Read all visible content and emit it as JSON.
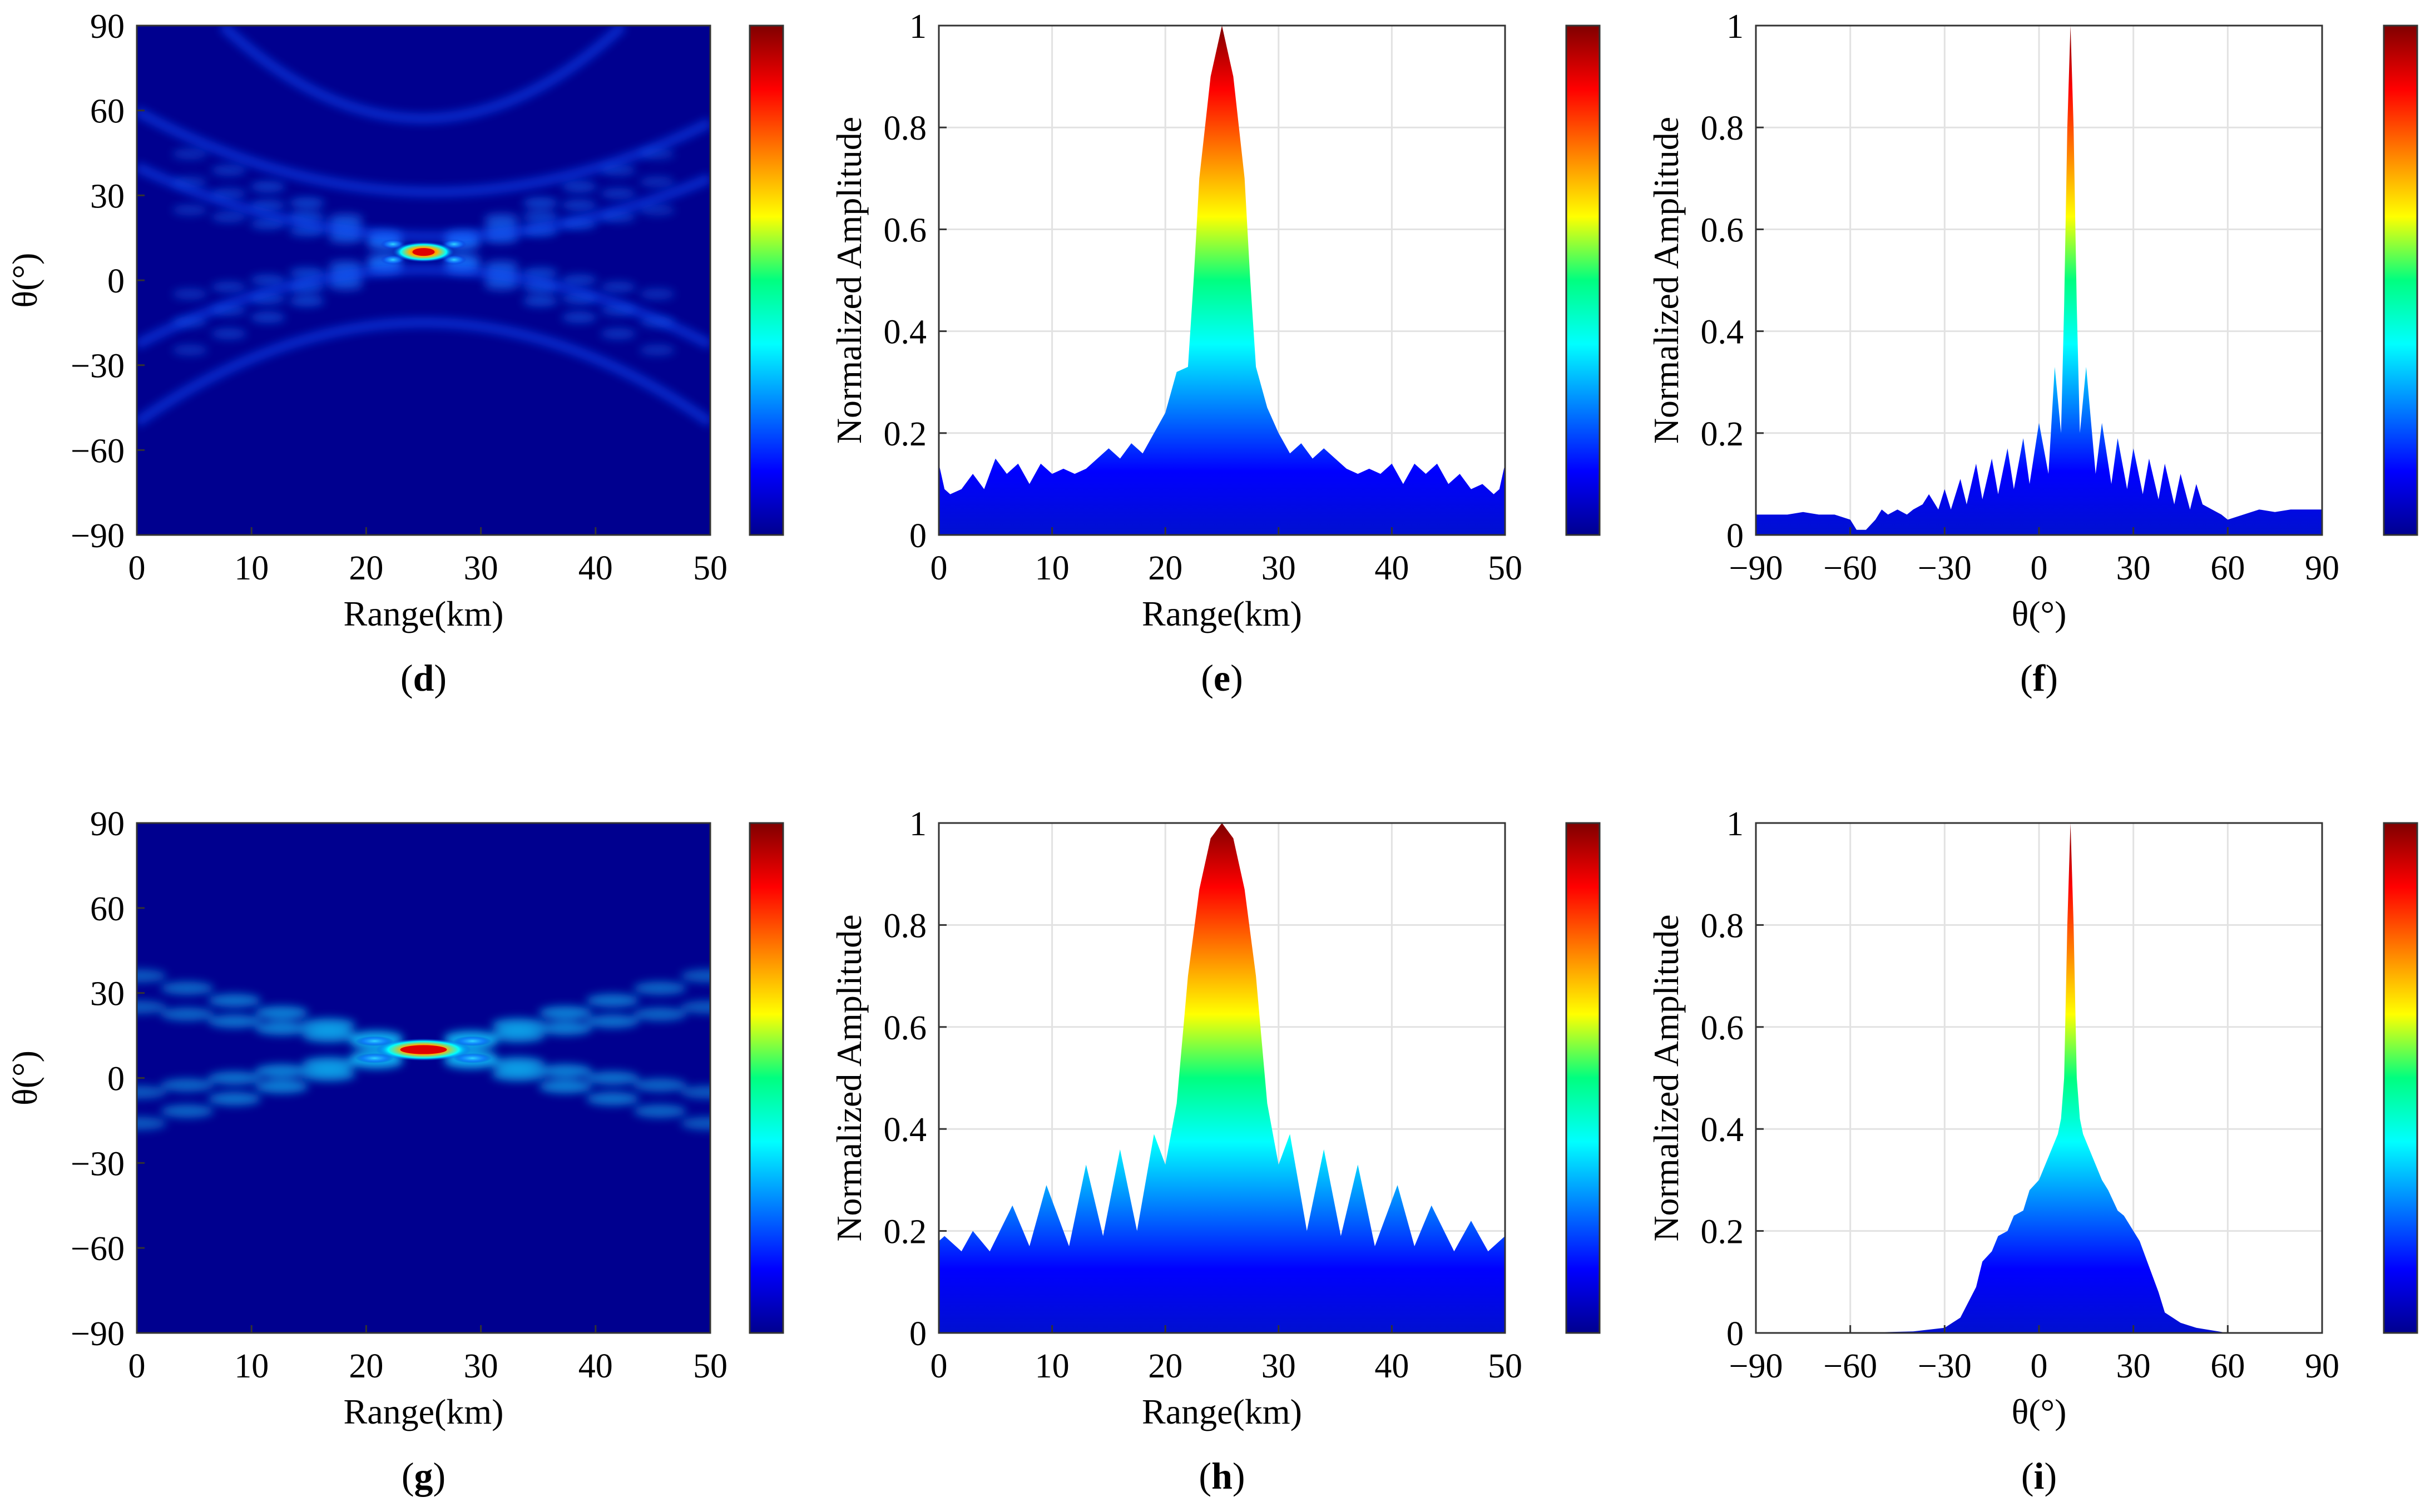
{
  "chart_data": [
    {
      "id": "d",
      "type": "heatmap",
      "label": "d",
      "title": "",
      "xlabel": "Range(km)",
      "ylabel": "θ(°)",
      "xlim": [
        0,
        50
      ],
      "ylim": [
        -90,
        90
      ],
      "xticks": [
        "0",
        "10",
        "20",
        "30",
        "40",
        "50"
      ],
      "yticks": [
        "−90",
        "−60",
        "−30",
        "0",
        "30",
        "60",
        "90"
      ],
      "peak": {
        "range_km": 25,
        "theta_deg": 10,
        "value": 1.0
      },
      "colorbar": true,
      "colormap": "jet"
    },
    {
      "id": "e",
      "type": "area",
      "label": "e",
      "xlabel": "Range(km)",
      "ylabel": "Normalized Amplitude",
      "xlim": [
        0,
        50
      ],
      "ylim": [
        0,
        1
      ],
      "xticks": [
        "0",
        "10",
        "20",
        "30",
        "40",
        "50"
      ],
      "yticks": [
        "0",
        "0.2",
        "0.4",
        "0.6",
        "0.8",
        "1"
      ],
      "x": [
        0,
        0.5,
        1,
        2,
        3,
        4,
        5,
        6,
        7,
        8,
        9,
        10,
        11,
        12,
        13,
        14,
        15,
        16,
        17,
        18,
        19,
        20,
        21,
        22,
        22.5,
        23,
        24,
        25,
        26,
        27,
        27.5,
        28,
        29,
        30,
        31,
        32,
        33,
        34,
        35,
        36,
        37,
        38,
        39,
        40,
        41,
        42,
        43,
        44,
        45,
        46,
        47,
        48,
        49,
        49.5,
        50
      ],
      "values": [
        0.14,
        0.09,
        0.08,
        0.09,
        0.12,
        0.09,
        0.15,
        0.12,
        0.14,
        0.1,
        0.14,
        0.12,
        0.13,
        0.12,
        0.13,
        0.15,
        0.17,
        0.15,
        0.18,
        0.16,
        0.2,
        0.24,
        0.32,
        0.33,
        0.5,
        0.7,
        0.9,
        1.0,
        0.9,
        0.7,
        0.5,
        0.33,
        0.25,
        0.2,
        0.16,
        0.18,
        0.15,
        0.17,
        0.15,
        0.13,
        0.12,
        0.13,
        0.12,
        0.14,
        0.1,
        0.14,
        0.12,
        0.14,
        0.1,
        0.12,
        0.09,
        0.1,
        0.08,
        0.09,
        0.14
      ],
      "colorbar": true,
      "colormap": "jet"
    },
    {
      "id": "f",
      "type": "area",
      "label": "f",
      "xlabel": "θ(°)",
      "ylabel": "Normalized Amplitude",
      "xlim": [
        -90,
        90
      ],
      "ylim": [
        0,
        1
      ],
      "xticks": [
        "−90",
        "−60",
        "−30",
        "0",
        "30",
        "60",
        "90"
      ],
      "yticks": [
        "0",
        "0.2",
        "0.4",
        "0.6",
        "0.8",
        "1"
      ],
      "x": [
        -90,
        -85,
        -80,
        -75,
        -70,
        -65,
        -60,
        -58,
        -55,
        -52,
        -50,
        -48,
        -45,
        -42,
        -40,
        -37,
        -35,
        -32,
        -30,
        -28,
        -25,
        -23,
        -20,
        -18,
        -15,
        -13,
        -10,
        -8,
        -5,
        -3,
        0,
        3,
        5,
        7,
        8,
        9,
        10,
        11,
        12,
        13,
        15,
        18,
        20,
        23,
        25,
        28,
        30,
        33,
        35,
        38,
        40,
        43,
        45,
        48,
        50,
        52,
        55,
        58,
        60,
        65,
        70,
        75,
        80,
        85,
        90
      ],
      "values": [
        0.04,
        0.04,
        0.04,
        0.045,
        0.04,
        0.04,
        0.03,
        0.01,
        0.01,
        0.03,
        0.05,
        0.04,
        0.05,
        0.04,
        0.05,
        0.06,
        0.08,
        0.05,
        0.09,
        0.05,
        0.11,
        0.06,
        0.14,
        0.07,
        0.15,
        0.08,
        0.17,
        0.09,
        0.19,
        0.1,
        0.22,
        0.12,
        0.33,
        0.2,
        0.45,
        0.8,
        1.0,
        0.8,
        0.45,
        0.2,
        0.33,
        0.12,
        0.22,
        0.1,
        0.19,
        0.09,
        0.17,
        0.08,
        0.15,
        0.07,
        0.14,
        0.06,
        0.12,
        0.05,
        0.1,
        0.06,
        0.05,
        0.04,
        0.03,
        0.04,
        0.05,
        0.045,
        0.05,
        0.05,
        0.05
      ],
      "colorbar": true,
      "colormap": "jet"
    },
    {
      "id": "g",
      "type": "heatmap",
      "label": "g",
      "xlabel": "Range(km)",
      "ylabel": "θ(°)",
      "xlim": [
        0,
        50
      ],
      "ylim": [
        -90,
        90
      ],
      "xticks": [
        "0",
        "10",
        "20",
        "30",
        "40",
        "50"
      ],
      "yticks": [
        "−90",
        "−60",
        "−30",
        "0",
        "30",
        "60",
        "90"
      ],
      "peak": {
        "range_km": 25,
        "theta_deg": 10,
        "value": 1.0
      },
      "colorbar": true,
      "colormap": "jet"
    },
    {
      "id": "h",
      "type": "area",
      "label": "h",
      "xlabel": "Range(km)",
      "ylabel": "Normalized Amplitude",
      "xlim": [
        0,
        50
      ],
      "ylim": [
        0,
        1
      ],
      "xticks": [
        "0",
        "10",
        "20",
        "30",
        "40",
        "50"
      ],
      "yticks": [
        "0",
        "0.2",
        "0.4",
        "0.6",
        "0.8",
        "1"
      ],
      "x": [
        0,
        0.5,
        2,
        3,
        4.5,
        6.5,
        8,
        9.5,
        11.5,
        13,
        14.5,
        16,
        17.5,
        19,
        20,
        21,
        22,
        23,
        24,
        25,
        26,
        27,
        28,
        29,
        30,
        31,
        32.5,
        34,
        35.5,
        37,
        38.5,
        40.5,
        42,
        43.5,
        45.5,
        47,
        48.5,
        50
      ],
      "values": [
        0.18,
        0.19,
        0.16,
        0.2,
        0.16,
        0.25,
        0.17,
        0.29,
        0.17,
        0.33,
        0.19,
        0.36,
        0.2,
        0.39,
        0.33,
        0.45,
        0.7,
        0.87,
        0.97,
        1.0,
        0.97,
        0.87,
        0.7,
        0.45,
        0.33,
        0.39,
        0.2,
        0.36,
        0.19,
        0.33,
        0.17,
        0.29,
        0.17,
        0.25,
        0.16,
        0.22,
        0.16,
        0.19
      ],
      "colorbar": true,
      "colormap": "jet"
    },
    {
      "id": "i",
      "type": "area",
      "label": "i",
      "xlabel": "θ(°)",
      "ylabel": "Normalized Amplitude",
      "xlim": [
        -90,
        90
      ],
      "ylim": [
        0,
        1
      ],
      "xticks": [
        "−90",
        "−60",
        "−30",
        "0",
        "30",
        "60",
        "90"
      ],
      "yticks": [
        "0",
        "0.2",
        "0.4",
        "0.6",
        "0.8",
        "1"
      ],
      "x": [
        -90,
        -60,
        -40,
        -30,
        -25,
        -20,
        -18,
        -15,
        -13,
        -10,
        -8,
        -5,
        -3,
        0,
        2,
        4,
        6,
        7,
        8,
        9,
        10,
        11,
        12,
        13,
        14,
        16,
        18,
        20,
        22,
        25,
        27,
        30,
        32,
        35,
        38,
        40,
        45,
        50,
        60,
        90
      ],
      "values": [
        0.0,
        0.0,
        0.003,
        0.01,
        0.03,
        0.09,
        0.14,
        0.16,
        0.19,
        0.2,
        0.23,
        0.24,
        0.28,
        0.3,
        0.33,
        0.36,
        0.39,
        0.42,
        0.5,
        0.8,
        1.0,
        0.8,
        0.5,
        0.42,
        0.39,
        0.36,
        0.33,
        0.3,
        0.28,
        0.24,
        0.23,
        0.2,
        0.18,
        0.13,
        0.08,
        0.04,
        0.02,
        0.01,
        0.0,
        0.0
      ],
      "colorbar": true,
      "colormap": "jet"
    }
  ]
}
